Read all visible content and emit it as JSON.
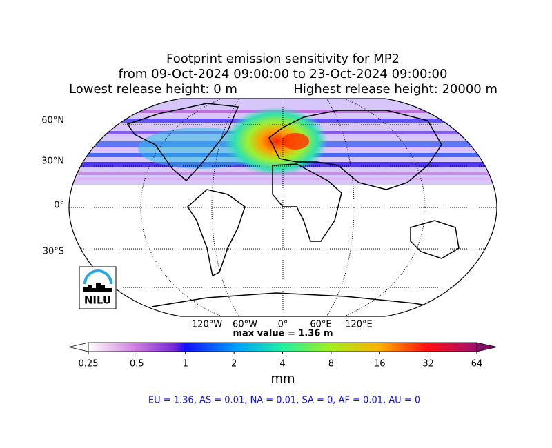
{
  "header": {
    "title": "Footprint emission sensitivity for MP2",
    "period": "from 09-Oct-2024 09:00:00 to 23-Oct-2024 09:00:00",
    "lowest": "Lowest release height: 0 m",
    "highest": "Highest release height: 20000 m"
  },
  "map": {
    "lat_labels": [
      "60°N",
      "30°N",
      "0°",
      "30°S"
    ],
    "lon_labels": [
      "120°W",
      "60°W",
      "0°",
      "60°E",
      "120°E"
    ],
    "max_value": "max value = 1.36 m",
    "logo": "NILU"
  },
  "colorbar": {
    "scale": "log",
    "lim": [
      0.25,
      64
    ],
    "ticks": [
      0.25,
      0.5,
      1,
      2,
      4,
      8,
      16,
      32,
      64
    ],
    "label": "mm"
  },
  "summary": "EU = 1.36,  AS = 0.01,  NA = 0.01,  SA = 0,  AF = 0.01,  AU = 0"
}
